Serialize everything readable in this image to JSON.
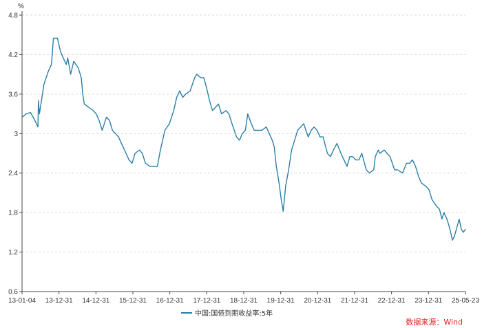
{
  "chart_data": {
    "type": "line",
    "unit": "%",
    "y_ticks": [
      "0.6",
      "1.2",
      "1.8",
      "2.4",
      "3",
      "3.6",
      "4.2",
      "4.8"
    ],
    "ylim": [
      0.6,
      4.8
    ],
    "x_ticks": [
      "13-01-04",
      "13-12-31",
      "14-12-31",
      "15-12-31",
      "16-12-31",
      "17-12-31",
      "18-12-31",
      "19-12-31",
      "20-12-31",
      "21-12-31",
      "22-12-31",
      "23-12-31",
      "25-05-23"
    ],
    "grid": "horizontal dashed",
    "legend_position": "bottom-center",
    "source": "数据来源：Wind",
    "colors": {
      "series": "#2a7ea6",
      "axis": "#444444",
      "grid": "#d9d9d9",
      "source": "#e02020"
    },
    "series": [
      {
        "name": "中国:国债到期收益率:5年",
        "points": [
          [
            "2013-01-04",
            3.25
          ],
          [
            "2013-02-15",
            3.3
          ],
          [
            "2013-04-01",
            3.32
          ],
          [
            "2013-05-15",
            3.2
          ],
          [
            "2013-06-15",
            3.1
          ],
          [
            "2013-06-20",
            3.5
          ],
          [
            "2013-07-01",
            3.3
          ],
          [
            "2013-08-15",
            3.75
          ],
          [
            "2013-09-30",
            3.95
          ],
          [
            "2013-10-31",
            4.05
          ],
          [
            "2013-11-20",
            4.45
          ],
          [
            "2013-12-31",
            4.45
          ],
          [
            "2014-01-31",
            4.25
          ],
          [
            "2014-02-28",
            4.15
          ],
          [
            "2014-03-31",
            4.05
          ],
          [
            "2014-04-15",
            4.15
          ],
          [
            "2014-05-15",
            3.9
          ],
          [
            "2014-06-15",
            4.1
          ],
          [
            "2014-07-31",
            4.0
          ],
          [
            "2014-08-31",
            3.85
          ],
          [
            "2014-09-15",
            3.6
          ],
          [
            "2014-10-01",
            3.45
          ],
          [
            "2014-11-15",
            3.4
          ],
          [
            "2014-12-31",
            3.35
          ],
          [
            "2015-01-31",
            3.3
          ],
          [
            "2015-03-01",
            3.2
          ],
          [
            "2015-04-01",
            3.05
          ],
          [
            "2015-05-15",
            3.25
          ],
          [
            "2015-06-15",
            3.2
          ],
          [
            "2015-07-15",
            3.05
          ],
          [
            "2015-08-15",
            3.0
          ],
          [
            "2015-09-15",
            2.95
          ],
          [
            "2015-10-15",
            2.85
          ],
          [
            "2015-11-15",
            2.75
          ],
          [
            "2015-12-31",
            2.6
          ],
          [
            "2016-01-31",
            2.55
          ],
          [
            "2016-03-01",
            2.7
          ],
          [
            "2016-04-15",
            2.75
          ],
          [
            "2016-05-15",
            2.7
          ],
          [
            "2016-06-15",
            2.55
          ],
          [
            "2016-08-01",
            2.5
          ],
          [
            "2016-09-15",
            2.5
          ],
          [
            "2016-10-15",
            2.5
          ],
          [
            "2016-11-15",
            2.75
          ],
          [
            "2016-12-31",
            3.05
          ],
          [
            "2017-02-15",
            3.15
          ],
          [
            "2017-03-31",
            3.35
          ],
          [
            "2017-04-30",
            3.55
          ],
          [
            "2017-05-31",
            3.65
          ],
          [
            "2017-06-30",
            3.55
          ],
          [
            "2017-07-31",
            3.6
          ],
          [
            "2017-09-15",
            3.65
          ],
          [
            "2017-10-31",
            3.85
          ],
          [
            "2017-11-20",
            3.9
          ],
          [
            "2017-12-31",
            3.85
          ],
          [
            "2018-01-31",
            3.85
          ],
          [
            "2018-02-28",
            3.7
          ],
          [
            "2018-03-31",
            3.5
          ],
          [
            "2018-04-30",
            3.35
          ],
          [
            "2018-05-31",
            3.4
          ],
          [
            "2018-06-30",
            3.45
          ],
          [
            "2018-08-01",
            3.3
          ],
          [
            "2018-09-15",
            3.35
          ],
          [
            "2018-10-15",
            3.3
          ],
          [
            "2018-11-15",
            3.15
          ],
          [
            "2018-12-31",
            2.95
          ],
          [
            "2019-01-31",
            2.9
          ],
          [
            "2019-02-28",
            3.0
          ],
          [
            "2019-03-31",
            3.05
          ],
          [
            "2019-04-25",
            3.3
          ],
          [
            "2019-05-31",
            3.15
          ],
          [
            "2019-06-30",
            3.05
          ],
          [
            "2019-08-01",
            3.05
          ],
          [
            "2019-09-15",
            3.05
          ],
          [
            "2019-10-31",
            3.1
          ],
          [
            "2019-11-30",
            3.0
          ],
          [
            "2019-12-31",
            2.9
          ],
          [
            "2020-01-20",
            2.8
          ],
          [
            "2020-02-10",
            2.5
          ],
          [
            "2020-03-09",
            2.25
          ],
          [
            "2020-03-31",
            2.0
          ],
          [
            "2020-04-20",
            1.82
          ],
          [
            "2020-05-15",
            2.2
          ],
          [
            "2020-06-15",
            2.45
          ],
          [
            "2020-07-15",
            2.75
          ],
          [
            "2020-08-15",
            2.9
          ],
          [
            "2020-09-15",
            3.05
          ],
          [
            "2020-10-15",
            3.1
          ],
          [
            "2020-11-15",
            3.15
          ],
          [
            "2020-12-31",
            2.95
          ],
          [
            "2021-01-31",
            3.05
          ],
          [
            "2021-03-01",
            3.1
          ],
          [
            "2021-04-01",
            3.05
          ],
          [
            "2021-05-01",
            2.95
          ],
          [
            "2021-06-01",
            2.95
          ],
          [
            "2021-07-15",
            2.7
          ],
          [
            "2021-08-15",
            2.65
          ],
          [
            "2021-09-15",
            2.75
          ],
          [
            "2021-10-20",
            2.85
          ],
          [
            "2021-11-30",
            2.7
          ],
          [
            "2021-12-31",
            2.6
          ],
          [
            "2022-01-31",
            2.5
          ],
          [
            "2022-02-28",
            2.65
          ],
          [
            "2022-03-31",
            2.65
          ],
          [
            "2022-05-01",
            2.6
          ],
          [
            "2022-06-01",
            2.6
          ],
          [
            "2022-07-01",
            2.7
          ],
          [
            "2022-08-15",
            2.45
          ],
          [
            "2022-09-15",
            2.4
          ],
          [
            "2022-10-31",
            2.45
          ],
          [
            "2022-11-15",
            2.65
          ],
          [
            "2022-12-15",
            2.75
          ],
          [
            "2022-12-31",
            2.7
          ],
          [
            "2023-02-15",
            2.75
          ],
          [
            "2023-03-15",
            2.7
          ],
          [
            "2023-04-15",
            2.65
          ],
          [
            "2023-05-31",
            2.45
          ],
          [
            "2023-06-30",
            2.45
          ],
          [
            "2023-08-20",
            2.4
          ],
          [
            "2023-09-30",
            2.55
          ],
          [
            "2023-10-31",
            2.55
          ],
          [
            "2023-11-30",
            2.6
          ],
          [
            "2023-12-31",
            2.5
          ],
          [
            "2024-01-31",
            2.35
          ],
          [
            "2024-02-28",
            2.25
          ],
          [
            "2024-04-15",
            2.2
          ],
          [
            "2024-05-15",
            2.15
          ],
          [
            "2024-06-15",
            2.0
          ],
          [
            "2024-07-31",
            1.9
          ],
          [
            "2024-08-31",
            1.85
          ],
          [
            "2024-09-25",
            1.7
          ],
          [
            "2024-10-15",
            1.8
          ],
          [
            "2024-11-15",
            1.7
          ],
          [
            "2024-12-15",
            1.55
          ],
          [
            "2024-12-31",
            1.45
          ],
          [
            "2025-01-10",
            1.38
          ],
          [
            "2025-02-01",
            1.45
          ],
          [
            "2025-03-01",
            1.6
          ],
          [
            "2025-03-20",
            1.7
          ],
          [
            "2025-04-10",
            1.55
          ],
          [
            "2025-05-01",
            1.5
          ],
          [
            "2025-05-23",
            1.55
          ]
        ]
      }
    ]
  }
}
